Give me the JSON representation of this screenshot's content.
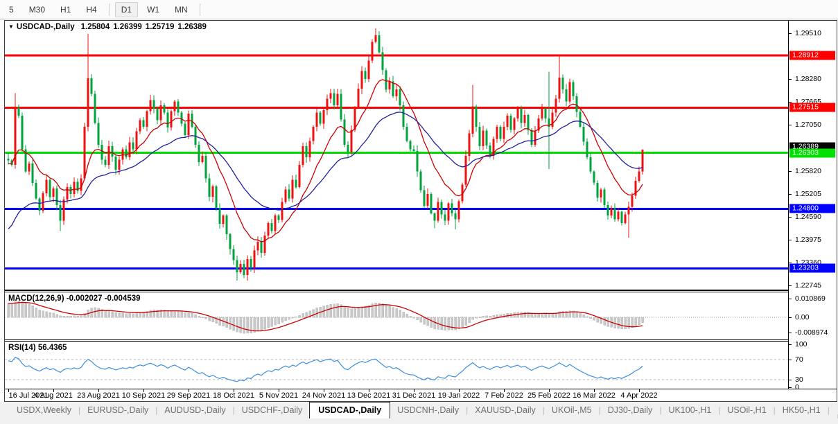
{
  "toolbar": {
    "timeframes": [
      {
        "label": "5",
        "active": false
      },
      {
        "label": "M30",
        "active": false
      },
      {
        "label": "H1",
        "active": false
      },
      {
        "label": "H4",
        "active": false
      },
      {
        "sep": true
      },
      {
        "label": "D1",
        "active": true
      },
      {
        "label": "W1",
        "active": false
      },
      {
        "label": "MN",
        "active": false
      },
      {
        "sep": true
      }
    ]
  },
  "chart": {
    "title": {
      "collapse_icon": "▼",
      "symbol": "USDCAD-,Daily",
      "open": "1.25804",
      "high": "1.26399",
      "low": "1.25719",
      "close": "1.26389"
    }
  },
  "chart_data": {
    "type": "candlestick",
    "symbol": "USDCAD",
    "timeframe": "Daily",
    "title": "USDCAD-,Daily",
    "last_ohlc": {
      "open": 1.25804,
      "high": 1.26399,
      "low": 1.25719,
      "close": 1.26389
    },
    "ylim": [
      1.22745,
      1.2951
    ],
    "y_axis_ticks": [
      "1.29510",
      "1.28280",
      "1.27665",
      "1.27050",
      "1.25820",
      "1.25205",
      "1.24590",
      "1.23975",
      "1.23360",
      "1.22745"
    ],
    "x_labels": [
      {
        "text": "16 Jul 2021",
        "i": 0
      },
      {
        "text": "4 Aug 2021",
        "i": 13
      },
      {
        "text": "23 Aug 2021",
        "i": 26
      },
      {
        "text": "10 Sep 2021",
        "i": 39
      },
      {
        "text": "29 Sep 2021",
        "i": 52
      },
      {
        "text": "18 Oct 2021",
        "i": 65
      },
      {
        "text": "5 Nov 2021",
        "i": 78
      },
      {
        "text": "24 Nov 2021",
        "i": 91
      },
      {
        "text": "13 Dec 2021",
        "i": 104
      },
      {
        "text": "31 Dec 2021",
        "i": 117
      },
      {
        "text": "19 Jan 2022",
        "i": 130
      },
      {
        "text": "7 Feb 2022",
        "i": 143
      },
      {
        "text": "25 Feb 2022",
        "i": 156
      },
      {
        "text": "16 Mar 2022",
        "i": 169
      },
      {
        "text": "4 Apr 2022",
        "i": 182
      }
    ],
    "hlines": [
      {
        "price": 1.28912,
        "label": "1.28912",
        "color": "#ff0000",
        "thickness": 3,
        "label_bg": "#ff0000",
        "label_fg": "#ffffff"
      },
      {
        "price": 1.27515,
        "label": "1.27515",
        "color": "#ff0000",
        "thickness": 3,
        "label_bg": "#ff0000",
        "label_fg": "#ffffff"
      },
      {
        "price": 1.26303,
        "label": "1.26303",
        "color": "#00dd00",
        "thickness": 3,
        "label_bg": "#00e000",
        "label_fg": "#ffffff"
      },
      {
        "price": 1.248,
        "label": "1.24800",
        "color": "#0000ff",
        "thickness": 3,
        "label_bg": "#0000ff",
        "label_fg": "#ffffff"
      },
      {
        "price": 1.23203,
        "label": "1.23203",
        "color": "#0000ff",
        "thickness": 3,
        "label_bg": "#0000ff",
        "label_fg": "#ffffff"
      }
    ],
    "current_price": {
      "value": 1.26389,
      "label": "1.26389",
      "label_bg": "#000000",
      "label_fg": "#ffffff"
    },
    "colors": {
      "candle_up": "#ee1111",
      "candle_down": "#00a33c",
      "ma_fast": "#cc0000",
      "ma_slow": "#1f1f9e",
      "macd_hist": "#c8c8c8",
      "macd_signal": "#cc0000",
      "rsi_line": "#3e8ede"
    },
    "candles": {
      "note": "approximate daily closes read from chart, 16 Jul 2021 onward",
      "first_open": 1.2615,
      "closes": [
        1.261,
        1.2598,
        1.2752,
        1.273,
        1.264,
        1.258,
        1.2602,
        1.255,
        1.2508,
        1.2475,
        1.2522,
        1.2558,
        1.2512,
        1.2535,
        1.249,
        1.2448,
        1.2505,
        1.2538,
        1.252,
        1.2552,
        1.2528,
        1.2562,
        1.27,
        1.283,
        1.2788,
        1.271,
        1.2652,
        1.2612,
        1.2598,
        1.2648,
        1.262,
        1.2585,
        1.2612,
        1.264,
        1.2618,
        1.2658,
        1.264,
        1.2688,
        1.2718,
        1.27,
        1.2742,
        1.2772,
        1.2748,
        1.2718,
        1.2758,
        1.2738,
        1.2698,
        1.2742,
        1.2768,
        1.2738,
        1.2708,
        1.2678,
        1.2735,
        1.27,
        1.2652,
        1.2605,
        1.2622,
        1.2562,
        1.2512,
        1.254,
        1.2482,
        1.244,
        1.2462,
        1.2412,
        1.2372,
        1.2342,
        1.231,
        1.2332,
        1.2302,
        1.2345,
        1.2322,
        1.2368,
        1.2392,
        1.2362,
        1.2408,
        1.2442,
        1.242,
        1.2462,
        1.245,
        1.2498,
        1.2532,
        1.2508,
        1.2558,
        1.2538,
        1.2598,
        1.2648,
        1.2618,
        1.2662,
        1.27,
        1.2738,
        1.2708,
        1.2745,
        1.2775,
        1.279,
        1.2758,
        1.2788,
        1.272,
        1.2652,
        1.2632,
        1.2692,
        1.2752,
        1.2802,
        1.285,
        1.2828,
        1.2878,
        1.2928,
        1.2945,
        1.29,
        1.2852,
        1.28,
        1.2822,
        1.2782,
        1.28,
        1.2758,
        1.27,
        1.2662,
        1.264,
        1.2635,
        1.258,
        1.253,
        1.2488,
        1.252,
        1.2468,
        1.2448,
        1.2498,
        1.2465,
        1.2448,
        1.2495,
        1.2468,
        1.2452,
        1.25,
        1.2545,
        1.2622,
        1.2682,
        1.2755,
        1.27,
        1.2648,
        1.269,
        1.265,
        1.2622,
        1.2668,
        1.27,
        1.2668,
        1.27,
        1.273,
        1.2692,
        1.2722,
        1.2748,
        1.271,
        1.2732,
        1.2692,
        1.2652,
        1.269,
        1.2722,
        1.2748,
        1.2722,
        1.27,
        1.2738,
        1.2775,
        1.2832,
        1.28,
        1.2768,
        1.282,
        1.2782,
        1.274,
        1.27,
        1.266,
        1.2618,
        1.258,
        1.255,
        1.251,
        1.2532,
        1.249,
        1.2462,
        1.2482,
        1.2452,
        1.2472,
        1.2442,
        1.2465,
        1.2485,
        1.2515,
        1.2555,
        1.258,
        1.26389
      ],
      "overrides": {
        "2": {
          "h": 1.279
        },
        "15": {
          "l": 1.242
        },
        "23": {
          "h": 1.2949
        },
        "41": {
          "h": 1.2786
        },
        "66": {
          "l": 1.2288
        },
        "106": {
          "h": 1.2964
        },
        "123": {
          "l": 1.2428
        },
        "129": {
          "l": 1.2425
        },
        "134": {
          "h": 1.2813
        },
        "156": {
          "h": 1.2848,
          "l": 1.2587
        },
        "159": {
          "h": 1.289
        },
        "179": {
          "l": 1.2403
        },
        "183": {
          "o": 1.25804,
          "h": 1.26399,
          "l": 1.25719
        }
      }
    },
    "ma_lines": [
      {
        "name": "ma-fast",
        "period": 13,
        "seed": 1.26,
        "color_key": "ma_fast"
      },
      {
        "name": "ma-slow",
        "period": 34,
        "seed": 1.2415,
        "color_key": "ma_slow"
      }
    ],
    "indicators": {
      "macd": {
        "name": "MACD(12,26,9)",
        "values_text": "-0.002027 -0.004539",
        "main_value": -0.002027,
        "signal_value": -0.004539,
        "fast": 12,
        "slow": 26,
        "signal": 9,
        "seeds": {
          "ema_fast": 1.252,
          "ema_slow": 1.244,
          "signal": 0.008
        },
        "scale_labels": [
          {
            "text": "0.010869",
            "v": 0.010869
          },
          {
            "text": "0.00",
            "v": 0.0
          },
          {
            "text": "-0.008974",
            "v": -0.008974
          }
        ]
      },
      "rsi": {
        "name": "RSI(14)",
        "value_text": "56.4365",
        "value": 56.4365,
        "period": 14,
        "seeds": {
          "avg_gain": 0.0028,
          "avg_loss": 0.0013
        },
        "levels": [
          70,
          30
        ],
        "scale_labels": [
          {
            "text": "100",
            "v": 100
          },
          {
            "text": "70",
            "v": 70
          },
          {
            "text": "30",
            "v": 30
          },
          {
            "text": "0",
            "v": 0
          }
        ]
      }
    }
  },
  "tabs": {
    "items": [
      {
        "label": "USDX,Weekly",
        "active": false
      },
      {
        "label": "EURUSD-,Daily",
        "active": false
      },
      {
        "label": "AUDUSD-,Daily",
        "active": false
      },
      {
        "label": "USDCHF-,Daily",
        "active": false
      },
      {
        "label": "USDCAD-,Daily",
        "active": true
      },
      {
        "label": "USDCNH-,Daily",
        "active": false
      },
      {
        "label": "XAUUSD-,Daily",
        "active": false
      },
      {
        "label": "UKOil-,M5",
        "active": false
      },
      {
        "label": "DJ30-,Daily",
        "active": false
      },
      {
        "label": "UK100-,H1",
        "active": false
      },
      {
        "label": "USOil-,H1",
        "active": false
      },
      {
        "label": "HK50-,H1",
        "active": false
      }
    ],
    "scroll_left": "◄",
    "scroll_right": "►"
  }
}
